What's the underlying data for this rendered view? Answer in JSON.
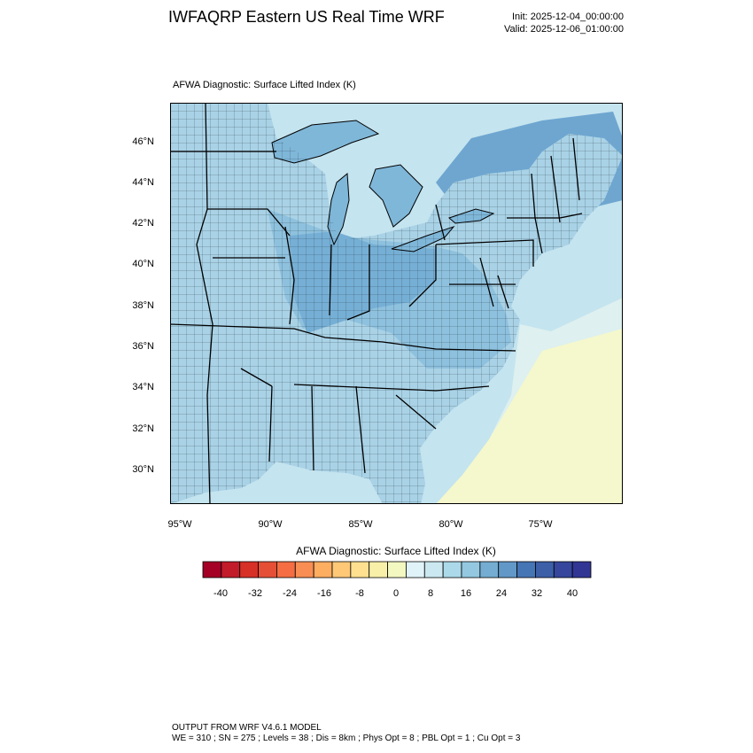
{
  "header": {
    "title": "IWFAQRP Eastern US Real Time WRF",
    "init": "Init: 2025-12-04_00:00:00",
    "valid": "Valid: 2025-12-06_01:00:00"
  },
  "map": {
    "plot_title": "AFWA Diagnostic: Surface Lifted Index   (K)",
    "lat_labels": [
      "46°N",
      "44°N",
      "42°N",
      "40°N",
      "38°N",
      "36°N",
      "34°N",
      "32°N",
      "30°N"
    ],
    "lon_labels": [
      "95°W",
      "90°W",
      "85°W",
      "80°W",
      "75°W"
    ],
    "colors": {
      "ocean_warm": "#f5f8cc",
      "ocean_mid": "#def0ef",
      "ocean_cool": "#c4e4ef",
      "land_base": "#a9d2e6",
      "land_mid": "#8ec1de",
      "land_dark": "#76afd5",
      "lake": "#7fb7d9",
      "canada_dark": "#6ea6d0",
      "border": "#000000"
    }
  },
  "colorbar": {
    "title": "AFWA Diagnostic: Surface Lifted Index  (K)",
    "tick_labels": [
      "-40",
      "-32",
      "-24",
      "-16",
      "-8",
      "0",
      "8",
      "16",
      "24",
      "32",
      "40"
    ],
    "colors": [
      "#a50026",
      "#c21b2a",
      "#d73027",
      "#e54f36",
      "#f46d43",
      "#f88e53",
      "#fdae61",
      "#fec877",
      "#fee090",
      "#f8f0a8",
      "#f2f8c0",
      "#e0f3f8",
      "#cbe8f1",
      "#abd9e9",
      "#93c8e0",
      "#74add1",
      "#6298c8",
      "#4575b4",
      "#3d5fa8",
      "#35469c",
      "#313695"
    ]
  },
  "footer": {
    "line1": "OUTPUT FROM WRF V4.6.1 MODEL",
    "line2": "WE = 310 ; SN = 275 ; Levels = 38 ; Dis = 8km ; Phys Opt = 8 ; PBL Opt = 1 ; Cu Opt = 3"
  }
}
